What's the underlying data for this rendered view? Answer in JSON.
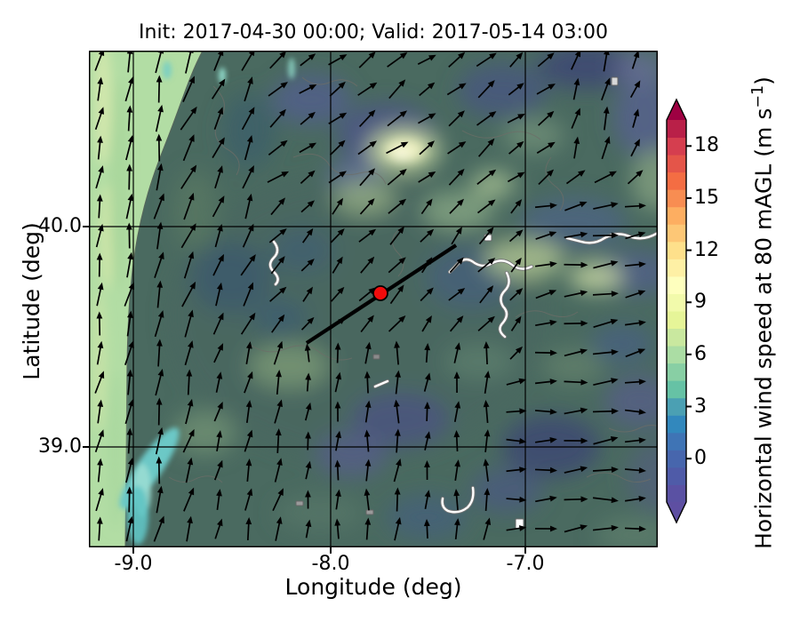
{
  "title": "Init: 2017-04-30 00:00; Valid: 2017-05-14 03:00",
  "axes": {
    "xlabel": "Longitude (deg)",
    "ylabel": "Latitude (deg)",
    "xtick_labels": [
      "-9.0",
      "-8.0",
      "-7.0"
    ],
    "xtick_values": [
      -9.0,
      -8.0,
      -7.0
    ],
    "ytick_labels": [
      "40.0",
      "39.0"
    ],
    "ytick_values": [
      40.0,
      39.0
    ],
    "xlim": [
      -9.22,
      -6.34
    ],
    "ylim": [
      38.55,
      40.8
    ]
  },
  "colorbar": {
    "label_main": "Horizontal wind speed at 80 mAGL (m s",
    "label_sup": "−1",
    "label_end": ")",
    "tick_labels": [
      "0",
      "3",
      "6",
      "9",
      "12",
      "15",
      "18"
    ],
    "tick_values": [
      0,
      3,
      6,
      9,
      12,
      15,
      18
    ],
    "vmin": -2.5,
    "vmax": 19.5,
    "colormap": "Spectral_r",
    "extend": "both",
    "over_color": "#9e0142",
    "under_color": "#5e4fa2",
    "segment_colors": [
      "#5a51a3",
      "#4f5ba8",
      "#4766ad",
      "#3f74b5",
      "#3288bd",
      "#4ba0b3",
      "#66c2a5",
      "#88cfa4",
      "#abdda4",
      "#c9e89f",
      "#e6f598",
      "#f2faab",
      "#feffbe",
      "#fef0a5",
      "#fee08b",
      "#fdc776",
      "#fdae61",
      "#f88d52",
      "#f46d43",
      "#e45549",
      "#d53e4f",
      "#b92048"
    ]
  },
  "chart_data": {
    "type": "heatmap",
    "overlay": "quiver",
    "title": "Init: 2017-04-30 00:00; Valid: 2017-05-14 03:00",
    "xlabel": "Longitude (deg)",
    "ylabel": "Latitude (deg)",
    "xlim": [
      -9.22,
      -6.34
    ],
    "ylim": [
      38.55,
      40.8
    ],
    "xticks": [
      -9.0,
      -8.0,
      -7.0
    ],
    "yticks": [
      39.0,
      40.0
    ],
    "gridlines": {
      "x": [
        -9.0,
        -8.0,
        -7.0
      ],
      "y": [
        39.0,
        40.0
      ]
    },
    "colorbar_label": "Horizontal wind speed at 80 mAGL (m s-1)",
    "colorbar_ticks": [
      0,
      3,
      6,
      9,
      12,
      15,
      18
    ],
    "value_range_ms": [
      0,
      20
    ],
    "marker": {
      "type": "point",
      "lon": -7.74,
      "lat": 39.7,
      "fill": "#f20c0c",
      "edge": "#000000"
    },
    "transect": {
      "lon1": -8.11,
      "lat1": 39.47,
      "lon2": -7.36,
      "lat2": 39.92,
      "color": "#000000"
    },
    "field_summary": [
      {
        "area": "Atlantic offshore strip (west of coast)",
        "speed_ms": 6.5
      },
      {
        "area": "coastal estuary patches (cyan)",
        "speed_ms": 4.5
      },
      {
        "area": "inland plateau (teal-olive)",
        "speed_ms": 2.5
      },
      {
        "area": "dark blue-purple pockets",
        "speed_ms": 1.0
      },
      {
        "area": "bright pale spot north-centre",
        "speed_ms": 9.5
      }
    ],
    "wind_field": {
      "grid": {
        "x0": 12,
        "y0": 10,
        "dx": 33.5,
        "dy": 33.0,
        "cols": 19,
        "rows": 17
      },
      "angle_convention": "degrees CCW from east",
      "regions": [
        {
          "x": [
            0,
            112
          ],
          "y": [
            0,
            559
          ],
          "angle": 80,
          "len": 30
        },
        {
          "x": [
            112,
            210
          ],
          "y": [
            0,
            340
          ],
          "angle": 66,
          "len": 29
        },
        {
          "x": [
            112,
            240
          ],
          "y": [
            340,
            559
          ],
          "angle": 76,
          "len": 26
        },
        {
          "x": [
            515,
            640
          ],
          "y": [
            0,
            115
          ],
          "angle": 72,
          "len": 24
        },
        {
          "x": [
            210,
            640
          ],
          "y": [
            0,
            145
          ],
          "angle": 38,
          "len": 25
        },
        {
          "x": [
            505,
            640
          ],
          "y": [
            145,
            370
          ],
          "angle": 10,
          "len": 26
        },
        {
          "x": [
            455,
            640
          ],
          "y": [
            370,
            559
          ],
          "angle": 4,
          "len": 26
        },
        {
          "x": [
            210,
            455
          ],
          "y": [
            340,
            559
          ],
          "angle": 86,
          "len": 24
        },
        {
          "x": [
            0,
            640
          ],
          "y": [
            0,
            559
          ],
          "angle": 48,
          "len": 23
        }
      ]
    }
  }
}
